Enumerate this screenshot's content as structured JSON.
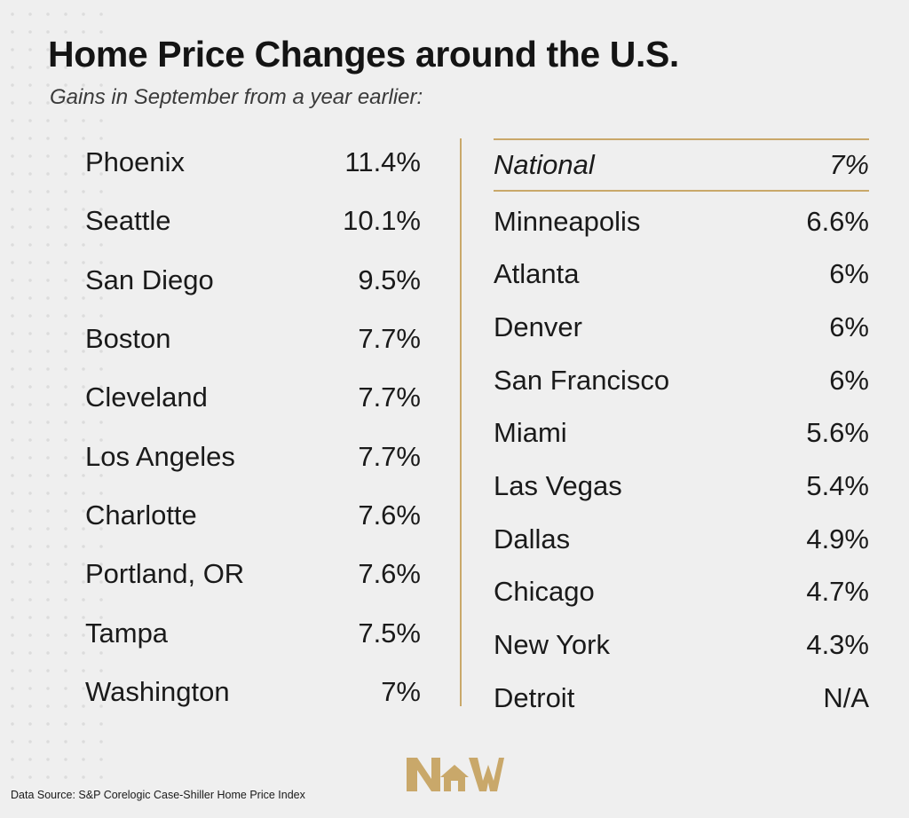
{
  "title": "Home Price Changes around the U.S.",
  "subtitle": "Gains in September from a year earlier:",
  "source": "Data Source: S&P Corelogic Case-Shiller Home Price Index",
  "logo_text": "NW",
  "colors": {
    "accent": "#c9a86a",
    "background": "#efefef",
    "text": "#1a1a1a"
  },
  "chart_data": {
    "type": "table",
    "columns": [
      {
        "rows": [
          {
            "city": "Phoenix",
            "change": "11.4%",
            "value": 11.4
          },
          {
            "city": "Seattle",
            "change": "10.1%",
            "value": 10.1
          },
          {
            "city": "San Diego",
            "change": "9.5%",
            "value": 9.5
          },
          {
            "city": "Boston",
            "change": "7.7%",
            "value": 7.7
          },
          {
            "city": "Cleveland",
            "change": "7.7%",
            "value": 7.7
          },
          {
            "city": "Los Angeles",
            "change": "7.7%",
            "value": 7.7
          },
          {
            "city": "Charlotte",
            "change": "7.6%",
            "value": 7.6
          },
          {
            "city": "Portland, OR",
            "change": "7.6%",
            "value": 7.6
          },
          {
            "city": "Tampa",
            "change": "7.5%",
            "value": 7.5
          },
          {
            "city": "Washington",
            "change": "7%",
            "value": 7
          }
        ]
      },
      {
        "rows": [
          {
            "city": "National",
            "change": "7%",
            "value": 7,
            "highlight": true
          },
          {
            "city": "Minneapolis",
            "change": "6.6%",
            "value": 6.6
          },
          {
            "city": "Atlanta",
            "change": "6%",
            "value": 6
          },
          {
            "city": "Denver",
            "change": "6%",
            "value": 6
          },
          {
            "city": "San Francisco",
            "change": "6%",
            "value": 6
          },
          {
            "city": "Miami",
            "change": "5.6%",
            "value": 5.6
          },
          {
            "city": "Las Vegas",
            "change": "5.4%",
            "value": 5.4
          },
          {
            "city": "Dallas",
            "change": "4.9%",
            "value": 4.9
          },
          {
            "city": "Chicago",
            "change": "4.7%",
            "value": 4.7
          },
          {
            "city": "New York",
            "change": "4.3%",
            "value": 4.3
          },
          {
            "city": "Detroit",
            "change": "N/A",
            "value": null
          }
        ]
      }
    ]
  }
}
